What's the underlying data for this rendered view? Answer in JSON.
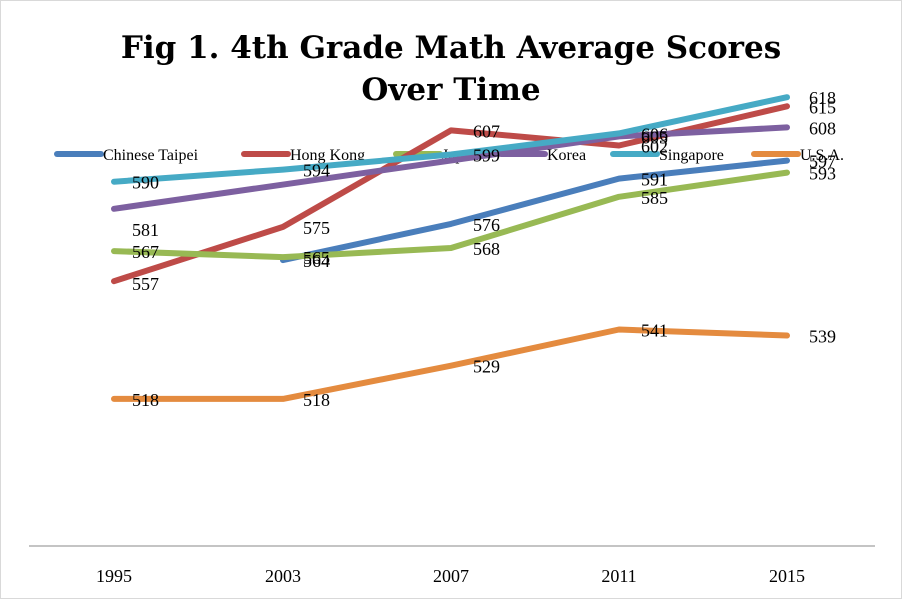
{
  "chart_data": {
    "type": "line",
    "title_lines": [
      "Fig 1. 4th Grade Math Average Scores",
      "Over Time"
    ],
    "categories": [
      "1995",
      "2003",
      "2007",
      "2011",
      "2015"
    ],
    "ylim": [
      450,
      630
    ],
    "grid": false,
    "legend_position": "top",
    "series": [
      {
        "name": "Chinese Taipei",
        "color": "#4a7ebb",
        "values": [
          null,
          564,
          576,
          591,
          597
        ],
        "labels": [
          "",
          "564",
          "576",
          "591",
          "597"
        ]
      },
      {
        "name": "Hong Kong",
        "color": "#be4b48",
        "values": [
          557,
          575,
          607,
          602,
          615
        ],
        "labels": [
          "557",
          "575",
          "607",
          "602",
          "615"
        ]
      },
      {
        "name": "Japan",
        "color": "#98b954",
        "values": [
          567,
          565,
          568,
          585,
          593
        ],
        "labels": [
          "567",
          "565",
          "568",
          "585",
          "593"
        ]
      },
      {
        "name": "Korea",
        "color": "#7d60a0",
        "values": [
          581,
          null,
          null,
          605,
          608
        ],
        "labels": [
          "581",
          "",
          "",
          "605",
          "608"
        ]
      },
      {
        "name": "Singapore",
        "color": "#46aac5",
        "values": [
          590,
          594,
          599,
          606,
          618
        ],
        "labels": [
          "590",
          "594",
          "599",
          "606",
          "618"
        ]
      },
      {
        "name": "U.S.A.",
        "color": "#e48b3f",
        "values": [
          518,
          518,
          529,
          541,
          539
        ],
        "labels": [
          "518",
          "518",
          "529",
          "541",
          "539"
        ]
      }
    ]
  }
}
